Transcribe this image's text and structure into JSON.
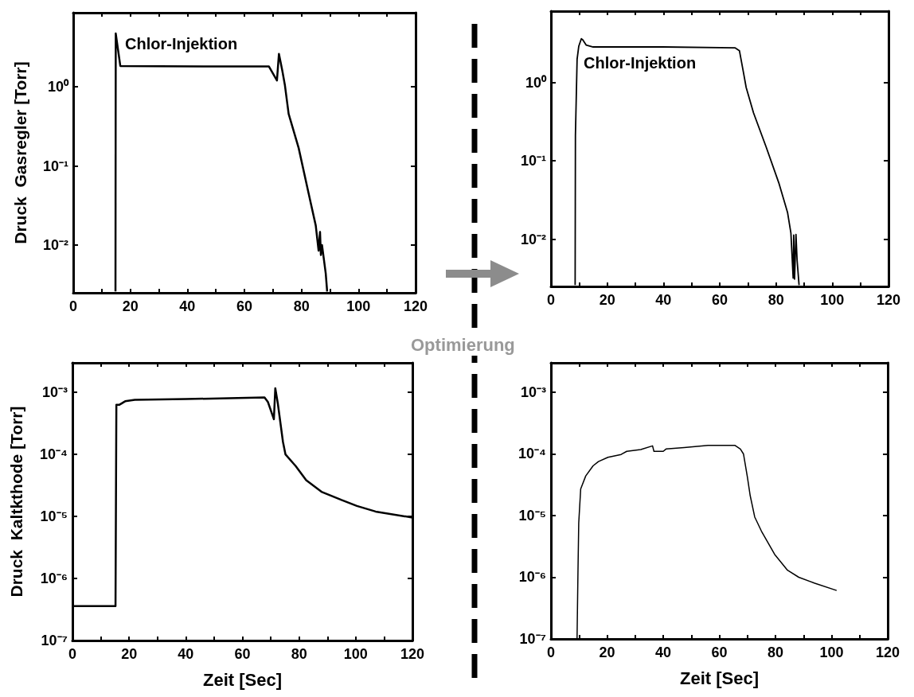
{
  "chart_data": [
    {
      "type": "line",
      "ylabel": "Druck  Gasregler [Torr]",
      "annotations": [
        "Chlor-Injektion"
      ],
      "log": true,
      "xlim": [
        0,
        120
      ],
      "xticks": [
        0,
        {
          "value": 10,
          "label": null
        },
        20,
        {
          "value": 30,
          "label": null
        },
        40,
        {
          "value": 50,
          "label": null
        },
        60,
        {
          "value": 70,
          "label": null
        },
        80,
        {
          "value": 90,
          "label": null
        },
        100,
        {
          "value": 110,
          "label": null
        },
        120
      ],
      "ylim": [
        0.0025,
        8.6
      ],
      "yticks": [
        {
          "value": 0.01,
          "label": "10⁻²"
        },
        {
          "value": 0.1,
          "label": "10⁻¹"
        },
        {
          "value": 1,
          "label": "10⁰"
        }
      ],
      "series": [
        {
          "color": "#000000",
          "x": [
            14.8,
            14.9,
            16.5,
            30,
            50,
            68.6,
            71.4,
            72.1,
            73.3,
            74.2,
            75.5,
            79,
            82.5,
            85,
            86,
            86.5,
            86.8,
            87.2,
            88.5,
            89
          ],
          "values": [
            0.0026,
            4.7,
            1.83,
            1.82,
            1.8,
            1.8,
            1.2,
            2.6,
            1.58,
            1.04,
            0.455,
            0.169,
            0.045,
            0.0177,
            0.0085,
            0.0147,
            0.0075,
            0.01,
            0.0044,
            0.0026
          ]
        }
      ]
    },
    {
      "type": "line",
      "annotations": [
        "Chlor-Injektion",
        "Optimierung"
      ],
      "log": true,
      "xlim": [
        0,
        120
      ],
      "xticks": [
        0,
        {
          "value": 10,
          "label": null
        },
        20,
        {
          "value": 30,
          "label": null
        },
        40,
        {
          "value": 50,
          "label": null
        },
        60,
        {
          "value": 70,
          "label": null
        },
        80,
        {
          "value": 90,
          "label": null
        },
        100,
        {
          "value": 110,
          "label": null
        },
        120
      ],
      "ylim": [
        0.0025,
        8.1
      ],
      "yticks": [
        {
          "value": 0.01,
          "label": "10⁻²"
        },
        {
          "value": 0.1,
          "label": "10⁻¹"
        },
        {
          "value": 1,
          "label": "10⁰"
        }
      ],
      "series": [
        {
          "color": "#000000",
          "x": [
            8.6,
            8.7,
            9.3,
            9.9,
            10.8,
            11.3,
            12.5,
            15,
            40,
            65.4,
            67,
            68.5,
            69.4,
            72,
            76.5,
            81.1,
            84.1,
            85.3,
            86.1,
            86.3,
            86.6,
            87.1,
            87.5,
            88.2
          ],
          "values": [
            0.0026,
            0.21,
            1.98,
            2.9,
            3.6,
            3.5,
            3.0,
            2.83,
            2.83,
            2.76,
            2.54,
            1.3,
            0.86,
            0.41,
            0.15,
            0.051,
            0.022,
            0.012,
            0.0032,
            0.0113,
            0.0031,
            0.0115,
            0.0054,
            0.0026
          ]
        }
      ]
    },
    {
      "type": "line",
      "xlabel": "Zeit [Sec]",
      "ylabel": "Druck  Kaltkthode [Torr]",
      "log": true,
      "xlim": [
        0,
        120
      ],
      "xticks": [
        0,
        {
          "value": 10,
          "label": null
        },
        20,
        {
          "value": 30,
          "label": null
        },
        40,
        {
          "value": 50,
          "label": null
        },
        60,
        {
          "value": 70,
          "label": null
        },
        80,
        {
          "value": 90,
          "label": null
        },
        100,
        {
          "value": 110,
          "label": null
        },
        120
      ],
      "ylim": [
        1e-07,
        0.003
      ],
      "yticks": [
        {
          "value": 1e-07,
          "label": "10⁻⁷"
        },
        {
          "value": 1e-06,
          "label": "10⁻⁶"
        },
        {
          "value": 1e-05,
          "label": "10⁻⁵"
        },
        {
          "value": 0.0001,
          "label": "10⁻⁴"
        },
        {
          "value": 0.001,
          "label": "10⁻³"
        }
      ],
      "series": [
        {
          "color": "#000000",
          "x": [
            0,
            15.2,
            15.5,
            16.5,
            18.6,
            22,
            40,
            67.8,
            69,
            71.1,
            71.6,
            72.5,
            74.3,
            75.2,
            78.8,
            82.5,
            87.9,
            95,
            100.4,
            107,
            120
          ],
          "values": [
            3.6e-07,
            3.6e-07,
            0.00063,
            0.00063,
            0.00072,
            0.00076,
            0.00078,
            0.00083,
            0.0007,
            0.00037,
            0.00117,
            0.00066,
            0.00016,
            0.0001,
            6.5e-05,
            3.85e-05,
            2.5e-05,
            1.84e-05,
            1.48e-05,
            1.2e-05,
            9.6e-06
          ]
        }
      ]
    },
    {
      "type": "line",
      "xlabel": "Zeit [Sec]",
      "log": true,
      "xlim": [
        0,
        120
      ],
      "xticks": [
        0,
        {
          "value": 10,
          "label": null
        },
        20,
        {
          "value": 30,
          "label": null
        },
        40,
        {
          "value": 50,
          "label": null
        },
        60,
        {
          "value": 70,
          "label": null
        },
        80,
        {
          "value": 90,
          "label": null
        },
        100,
        {
          "value": 110,
          "label": null
        },
        120
      ],
      "ylim": [
        1e-07,
        0.003
      ],
      "yticks": [
        {
          "value": 1e-07,
          "label": "10⁻⁷"
        },
        {
          "value": 1e-06,
          "label": "10⁻⁶"
        },
        {
          "value": 1e-05,
          "label": "10⁻⁵"
        },
        {
          "value": 0.0001,
          "label": "10⁻⁴"
        },
        {
          "value": 0.001,
          "label": "10⁻³"
        }
      ],
      "series": [
        {
          "color": "#000000",
          "x": [
            9.3,
            9.6,
            9.9,
            10.6,
            12.4,
            15,
            16.9,
            20.3,
            25,
            27,
            32,
            36.2,
            36.7,
            40,
            41,
            47.5,
            56,
            65.5,
            67.5,
            68.6,
            70,
            71,
            72.6,
            75,
            79.7,
            84.3,
            88.3,
            94,
            101.8
          ],
          "values": [
            1e-07,
            1e-06,
            7.6e-06,
            2.7e-05,
            4.4e-05,
            6.4e-05,
            7.5e-05,
            8.8e-05,
            9.8e-05,
            0.00011,
            0.000118,
            0.000135,
            0.00011,
            0.00011,
            0.00012,
            0.000127,
            0.000138,
            0.000138,
            0.00012,
            0.0001,
            4.2e-05,
            2.1e-05,
            9.5e-06,
            5.6e-06,
            2.35e-06,
            1.3e-06,
            1e-06,
            8e-07,
            6.1e-07
          ]
        }
      ]
    }
  ]
}
